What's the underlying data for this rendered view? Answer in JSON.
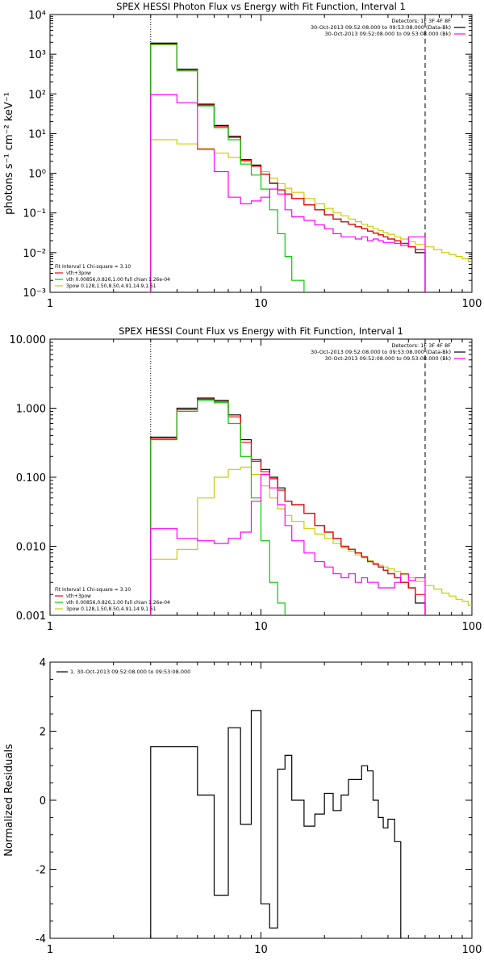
{
  "chart_data": [
    {
      "type": "line",
      "title": "SPEX HESSI Photon Flux vs Energy with Fit Function, Interval 1",
      "ylabel": "photons s⁻¹ cm⁻² keV⁻¹",
      "xlabel": "",
      "x_scale": "log",
      "y_scale": "log",
      "xlim": [
        1,
        100
      ],
      "ylim": [
        0.001,
        10000
      ],
      "x_ticks": [
        1,
        10,
        100
      ],
      "x_tick_labels": [
        "1",
        "10",
        "100"
      ],
      "y_ticks": [
        0.001,
        0.01,
        0.1,
        1,
        10,
        100,
        1000,
        10000
      ],
      "y_tick_labels": [
        "10⁻³",
        "10⁻²",
        "10⁻¹",
        "10⁰",
        "10¹",
        "10²",
        "10³",
        "10⁴"
      ],
      "legend_top": [
        "Detectors: 1F 3F 4F 8F",
        "30-Oct-2013 09:52:08.000 to 09:53:08.000 (Data-Bk)",
        "30-Oct-2013 09:52:08.000 to 09:53:08.000 (Bk)"
      ],
      "legend_top_colors": [
        "",
        "#000000",
        "#ff00ff"
      ],
      "legend_bottom": [
        "Fit Interval 1   Chi-square = 3.10",
        "vth+3pow",
        "vth 0.00856,0.826,1.00  full chian 1.26e-04",
        "3pow 0.128,1.50,8.50,4.91,14.9,1.51"
      ],
      "legend_bottom_colors": [
        "",
        "#ff0000",
        "#00cc00",
        "#cccc00"
      ],
      "vlines": [
        {
          "x": 3,
          "style": "dotted"
        },
        {
          "x": 60,
          "style": "dashed"
        }
      ],
      "bin_edges": [
        3,
        4,
        5,
        6,
        7,
        8,
        9,
        10,
        11,
        12,
        13,
        14,
        16,
        18,
        20,
        22,
        24,
        26,
        28,
        30,
        32,
        34,
        36,
        38,
        40,
        43,
        46,
        50,
        54,
        60
      ],
      "series": [
        {
          "color": "#000000",
          "values": [
            1900,
            420,
            55,
            16,
            8.5,
            2.2,
            1.6,
            0.95,
            0.56,
            0.38,
            0.3,
            0.23,
            0.16,
            0.12,
            0.09,
            0.07,
            0.06,
            0.052,
            0.045,
            0.04,
            0.035,
            0.031,
            0.028,
            0.025,
            0.022,
            0.02,
            0.017,
            0.014,
            0.01
          ]
        },
        {
          "color": "#ff0000",
          "values": [
            1800,
            400,
            52,
            15,
            8,
            2.1,
            1.5,
            0.95,
            0.55,
            0.38,
            0.3,
            0.23,
            0.16,
            0.12,
            0.09,
            0.07,
            0.06,
            0.052,
            0.045,
            0.04,
            0.035,
            0.031,
            0.028,
            0.025,
            0.022,
            0.02,
            0.017,
            0.014,
            0.012
          ]
        },
        {
          "color": "#00cc00",
          "values": [
            1750,
            380,
            50,
            14,
            7,
            1.7,
            0.9,
            0.4,
            0.12,
            0.03,
            0.008,
            0.002
          ]
        },
        {
          "color": "#ff00ff",
          "values": [
            95,
            60,
            4,
            1.1,
            0.25,
            0.17,
            0.2,
            0.25,
            0.4,
            0.3,
            0.12,
            0.08,
            0.065,
            0.05,
            0.04,
            0.03,
            0.025,
            0.025,
            0.022,
            0.025,
            0.02,
            0.022,
            0.02,
            0.018,
            0.018,
            0.017,
            0.015,
            0.025,
            0.025
          ]
        }
      ],
      "fit_curve": {
        "color": "#cccc00",
        "x": [
          3,
          4,
          5,
          6,
          7,
          8,
          9,
          10,
          11,
          12,
          13,
          14,
          16,
          18,
          20,
          22,
          24,
          26,
          28,
          30,
          32,
          34,
          36,
          38,
          40,
          43,
          46,
          50,
          54,
          60,
          66,
          72,
          78,
          84,
          90,
          96
        ],
        "values": [
          7,
          5.5,
          4.2,
          3.2,
          2.5,
          2,
          1.6,
          1.1,
          0.75,
          0.55,
          0.42,
          0.33,
          0.23,
          0.17,
          0.13,
          0.1,
          0.085,
          0.07,
          0.06,
          0.052,
          0.046,
          0.04,
          0.036,
          0.032,
          0.029,
          0.025,
          0.022,
          0.019,
          0.016,
          0.014,
          0.012,
          0.01,
          0.009,
          0.008,
          0.007,
          0.006
        ]
      }
    },
    {
      "type": "line",
      "title": "SPEX HESSI Count Flux vs Energy with Fit Function, Interval 1",
      "ylabel": "",
      "xlabel": "",
      "x_scale": "log",
      "y_scale": "log",
      "xlim": [
        1,
        100
      ],
      "ylim": [
        0.001,
        10
      ],
      "x_ticks": [
        1,
        10,
        100
      ],
      "x_tick_labels": [
        "1",
        "10",
        "100"
      ],
      "y_ticks": [
        0.001,
        0.01,
        0.1,
        1,
        10
      ],
      "y_tick_labels": [
        "0.001",
        "0.010",
        "0.100",
        "1.000",
        "10.000"
      ],
      "legend_top": [
        "Detectors: 1F 3F 4F 8F",
        "30-Oct-2013 09:52:08.000 to 09:53:08.000 (Data-Bk)",
        "30-Oct-2013 09:52:08.000 to 09:53:08.000 (Bk)"
      ],
      "legend_top_colors": [
        "",
        "#000000",
        "#ff00ff"
      ],
      "legend_bottom": [
        "Fit Interval 1   Chi-square = 3.10",
        "vth+3pow",
        "vth 0.00856,0.826,1.00  full chian 1.26e-04",
        "3pow 0.128,1.50,8.50,4.91,14.9,1.51"
      ],
      "legend_bottom_colors": [
        "",
        "#ff0000",
        "#00cc00",
        "#cccc00"
      ],
      "vlines": [
        {
          "x": 3,
          "style": "dotted"
        },
        {
          "x": 60,
          "style": "dashed"
        }
      ],
      "bin_edges": [
        3,
        4,
        5,
        6,
        7,
        8,
        9,
        10,
        11,
        12,
        13,
        14,
        16,
        18,
        20,
        22,
        24,
        26,
        28,
        30,
        32,
        34,
        36,
        38,
        40,
        43,
        46,
        50,
        54,
        60
      ],
      "series": [
        {
          "color": "#000000",
          "values": [
            0.38,
            1.0,
            1.4,
            1.3,
            0.8,
            0.35,
            0.18,
            0.13,
            0.1,
            0.07,
            0.045,
            0.04,
            0.03,
            0.02,
            0.016,
            0.013,
            0.01,
            0.009,
            0.008,
            0.007,
            0.006,
            0.0055,
            0.005,
            0.0045,
            0.004,
            0.0035,
            0.003,
            0.0025,
            0.0015
          ]
        },
        {
          "color": "#ff0000",
          "values": [
            0.36,
            0.95,
            1.35,
            1.25,
            0.75,
            0.32,
            0.17,
            0.12,
            0.095,
            0.065,
            0.045,
            0.04,
            0.03,
            0.02,
            0.016,
            0.013,
            0.01,
            0.009,
            0.008,
            0.007,
            0.006,
            0.0055,
            0.005,
            0.0045,
            0.004,
            0.0035,
            0.003,
            0.0025,
            0.002
          ]
        },
        {
          "color": "#00cc00",
          "values": [
            0.35,
            0.9,
            1.3,
            1.2,
            0.6,
            0.2,
            0.05,
            0.012,
            0.003,
            0.0015
          ]
        },
        {
          "color": "#ff00ff",
          "values": [
            0.018,
            0.013,
            0.012,
            0.011,
            0.013,
            0.016,
            0.045,
            0.11,
            0.07,
            0.04,
            0.02,
            0.012,
            0.008,
            0.006,
            0.005,
            0.004,
            0.0035,
            0.004,
            0.003,
            0.0035,
            0.003,
            0.003,
            0.0025,
            0.0025,
            0.0025,
            0.003,
            0.004,
            0.0032,
            0.0035
          ]
        }
      ],
      "fit_curve": {
        "color": "#cccc00",
        "x": [
          3,
          4,
          5,
          6,
          7,
          8,
          9,
          10,
          11,
          12,
          13,
          14,
          16,
          18,
          20,
          22,
          24,
          26,
          28,
          30,
          32,
          34,
          36,
          38,
          40,
          43,
          46,
          50,
          54,
          60,
          66,
          72,
          78,
          84,
          90,
          96
        ],
        "values": [
          0.0065,
          0.009,
          0.05,
          0.1,
          0.13,
          0.14,
          0.11,
          0.075,
          0.05,
          0.035,
          0.028,
          0.023,
          0.018,
          0.015,
          0.013,
          0.011,
          0.0095,
          0.0085,
          0.0075,
          0.0068,
          0.0062,
          0.0057,
          0.0053,
          0.005,
          0.0047,
          0.0043,
          0.0039,
          0.0035,
          0.0031,
          0.0027,
          0.0024,
          0.0021,
          0.0019,
          0.0017,
          0.0016,
          0.0014
        ]
      }
    },
    {
      "type": "line",
      "title": "",
      "ylabel": "Normalized Residuals",
      "xlabel": "",
      "x_scale": "log",
      "y_scale": "linear",
      "xlim": [
        1,
        100
      ],
      "ylim": [
        -4,
        4
      ],
      "x_ticks": [
        1,
        10,
        100
      ],
      "x_tick_labels": [
        "1",
        "10",
        "100"
      ],
      "y_ticks": [
        -4,
        -2,
        0,
        2,
        4
      ],
      "y_tick_labels": [
        "-4",
        "-2",
        "0",
        "2",
        "4"
      ],
      "legend_top": [
        "1. 30-Oct-2013 09:52:08.000 to 09:53:08.000"
      ],
      "bin_edges": [
        3,
        4,
        5,
        6,
        7,
        8,
        9,
        10,
        11,
        12,
        13,
        14,
        16,
        18,
        20,
        22,
        24,
        26,
        28,
        30,
        32,
        34,
        36,
        38,
        40,
        43,
        46,
        50,
        54,
        60
      ],
      "series": [
        {
          "color": "#000000",
          "values": [
            1.55,
            1.55,
            0.15,
            -2.75,
            2.1,
            -0.7,
            2.6,
            -3.0,
            -3.7,
            0.9,
            1.3,
            0.0,
            -0.75,
            -0.4,
            0.2,
            -0.3,
            0.15,
            0.6,
            0.6,
            1.0,
            0.85,
            0.0,
            -0.5,
            -0.8,
            -0.55,
            -1.2
          ]
        }
      ]
    }
  ]
}
